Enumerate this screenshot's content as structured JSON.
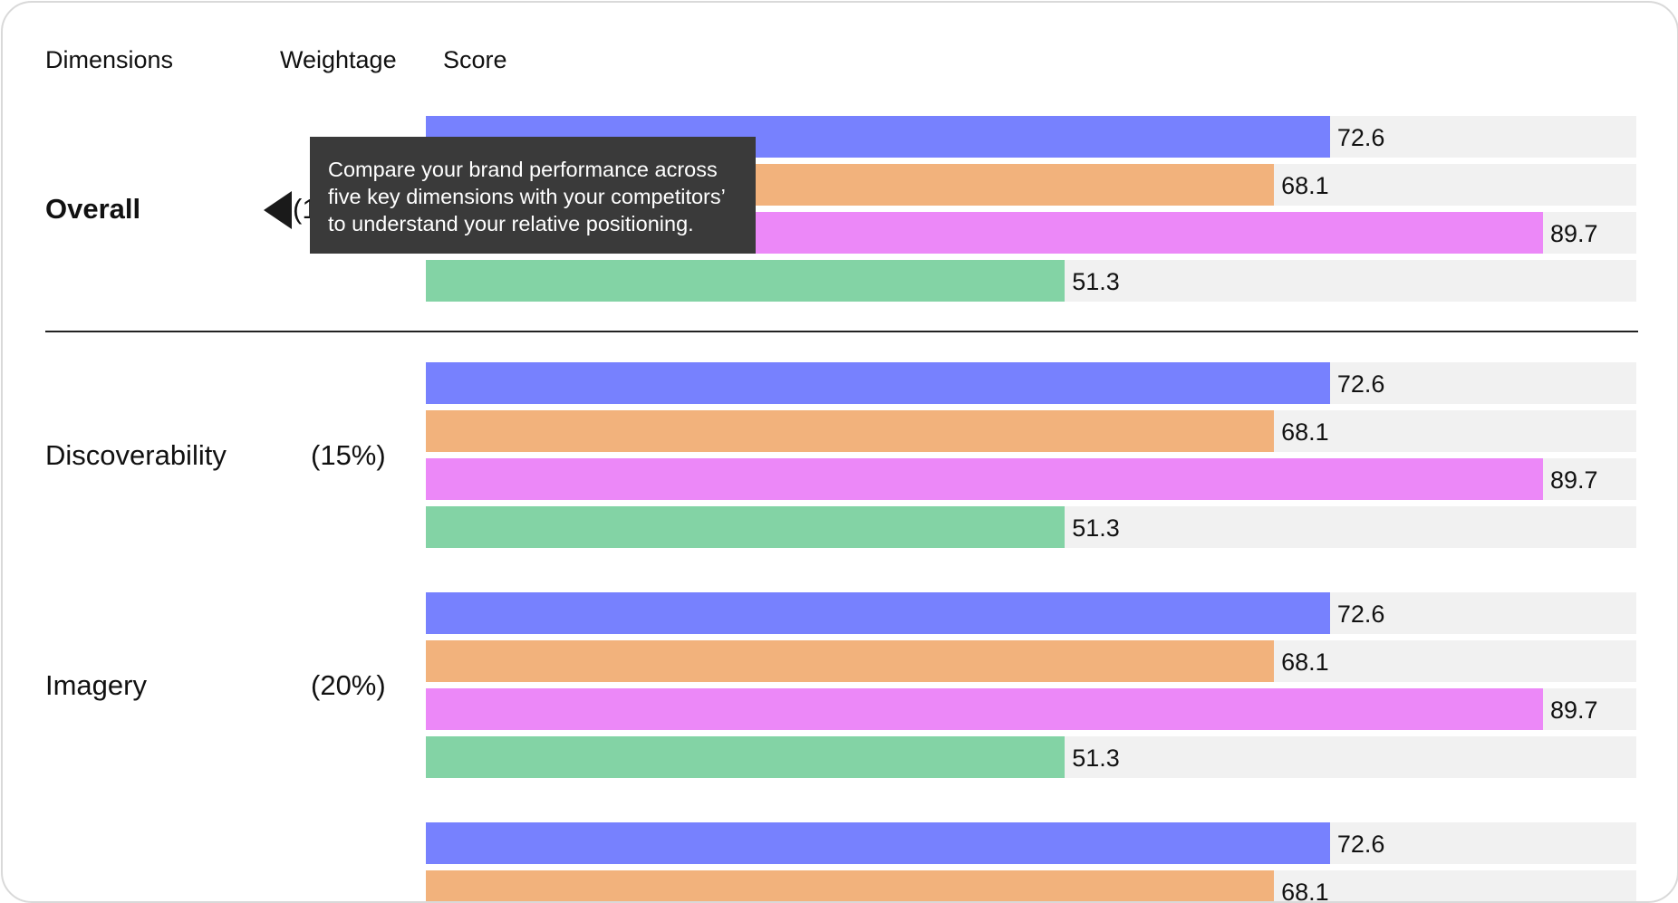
{
  "header": {
    "dimensions_label": "Dimensions",
    "weightage_label": "Weightage",
    "score_label": "Score"
  },
  "tooltip": {
    "text": "Compare your brand performance across five key dimensions with your competitors’ to understand your relative positioning.",
    "weight_fragment": "(1"
  },
  "colors": {
    "blue": "#7781fe",
    "orange": "#f2b27c",
    "pink": "#ec88f8",
    "green": "#83d3a5",
    "track": "#f1f1f1"
  },
  "chart_data": {
    "type": "bar",
    "orientation": "horizontal",
    "xlim": [
      0,
      100
    ],
    "groups": [
      {
        "name": "Overall",
        "weight": "",
        "values": [
          72.6,
          68.1,
          89.7,
          51.3
        ]
      },
      {
        "name": "Discoverability",
        "weight": "(15%)",
        "values": [
          72.6,
          68.1,
          89.7,
          51.3
        ]
      },
      {
        "name": "Imagery",
        "weight": "(20%)",
        "values": [
          72.6,
          68.1,
          89.7,
          51.3
        ]
      },
      {
        "name": "",
        "weight": "",
        "values": [
          72.6,
          68.1
        ]
      }
    ]
  }
}
